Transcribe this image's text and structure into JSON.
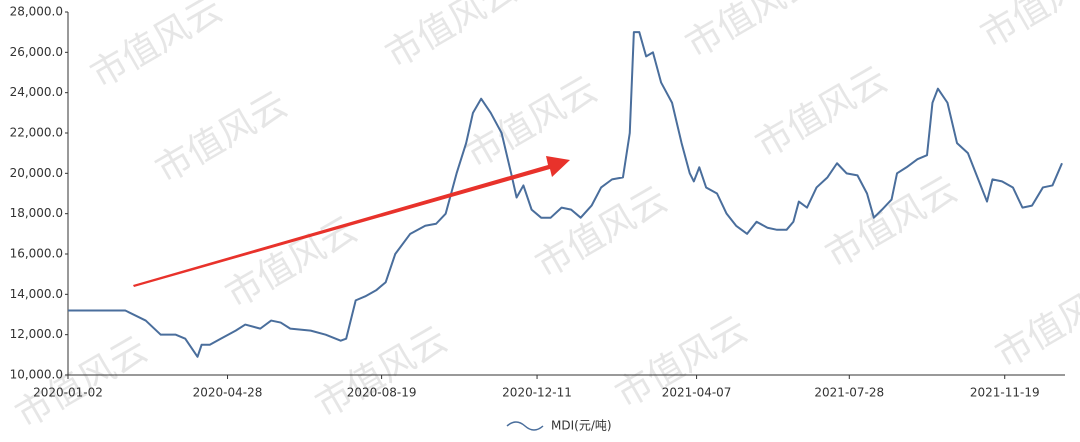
{
  "chart_data": {
    "type": "line",
    "watermark": "市值风云",
    "x": [
      "2020-01-02",
      "2020-02-13",
      "2020-02-28",
      "2020-03-10",
      "2020-03-21",
      "2020-03-28",
      "2020-04-06",
      "2020-04-09",
      "2020-04-15",
      "2020-04-23",
      "2020-05-04",
      "2020-05-11",
      "2020-05-22",
      "2020-05-30",
      "2020-06-06",
      "2020-06-13",
      "2020-06-28",
      "2020-07-09",
      "2020-07-20",
      "2020-07-24",
      "2020-07-31",
      "2020-08-07",
      "2020-08-15",
      "2020-08-22",
      "2020-08-29",
      "2020-09-09",
      "2020-09-20",
      "2020-09-28",
      "2020-10-05",
      "2020-10-13",
      "2020-10-20",
      "2020-10-25",
      "2020-10-31",
      "2020-11-07",
      "2020-11-15",
      "2020-11-22",
      "2020-11-26",
      "2020-12-01",
      "2020-12-07",
      "2020-12-14",
      "2020-12-21",
      "2020-12-29",
      "2021-01-05",
      "2021-01-12",
      "2021-01-20",
      "2021-01-27",
      "2021-02-04",
      "2021-02-12",
      "2021-02-17",
      "2021-02-20",
      "2021-02-24",
      "2021-03-01",
      "2021-03-06",
      "2021-03-12",
      "2021-03-20",
      "2021-03-27",
      "2021-04-02",
      "2021-04-05",
      "2021-04-09",
      "2021-04-14",
      "2021-04-22",
      "2021-04-29",
      "2021-05-06",
      "2021-05-14",
      "2021-05-21",
      "2021-05-29",
      "2021-06-05",
      "2021-06-12",
      "2021-06-17",
      "2021-06-21",
      "2021-06-27",
      "2021-07-04",
      "2021-07-12",
      "2021-07-19",
      "2021-07-26",
      "2021-08-03",
      "2021-08-10",
      "2021-08-15",
      "2021-08-21",
      "2021-08-28",
      "2021-09-01",
      "2021-09-08",
      "2021-09-16",
      "2021-09-23",
      "2021-09-27",
      "2021-10-01",
      "2021-10-08",
      "2021-10-15",
      "2021-10-23",
      "2021-10-30",
      "2021-11-06",
      "2021-11-10",
      "2021-11-17",
      "2021-11-25",
      "2021-12-02",
      "2021-12-09",
      "2021-12-17",
      "2021-12-24",
      "2021-12-31"
    ],
    "series": [
      {
        "name": "MDI(元/吨)",
        "color": "#4a6e9c",
        "values": [
          13200,
          13200,
          12700,
          12000,
          12000,
          11800,
          10900,
          11500,
          11500,
          11800,
          12200,
          12500,
          12300,
          12700,
          12600,
          12300,
          12200,
          12000,
          11700,
          11800,
          13700,
          13900,
          14200,
          14600,
          16000,
          17000,
          17400,
          17500,
          18000,
          20000,
          21500,
          23000,
          23700,
          23000,
          22000,
          20000,
          18800,
          19400,
          18200,
          17800,
          17800,
          18300,
          18200,
          17800,
          18400,
          19300,
          19700,
          19800,
          22000,
          27000,
          27000,
          25800,
          26000,
          24500,
          23500,
          21500,
          20000,
          19600,
          20300,
          19300,
          19000,
          18000,
          17400,
          17000,
          17600,
          17300,
          17200,
          17200,
          17600,
          18600,
          18300,
          19300,
          19800,
          20500,
          20000,
          19900,
          19000,
          17800,
          18200,
          18700,
          20000,
          20300,
          20700,
          20900,
          23500,
          24200,
          23500,
          21500,
          21000,
          19800,
          18600,
          19700,
          19600,
          19300,
          18300,
          18400,
          19300,
          19400,
          20500
        ]
      }
    ],
    "xlim": [
      "2020-01-02",
      "2021-12-31"
    ],
    "xticks": [
      "2020-01-02",
      "2020-04-28",
      "2020-08-19",
      "2020-12-11",
      "2021-04-07",
      "2021-07-28",
      "2021-11-19"
    ],
    "ylim": [
      10000,
      28000
    ],
    "yticks": [
      {
        "value": 10000,
        "label": "10,000.0"
      },
      {
        "value": 12000,
        "label": "12,000.0"
      },
      {
        "value": 14000,
        "label": "14,000.0"
      },
      {
        "value": 16000,
        "label": "16,000.0"
      },
      {
        "value": 18000,
        "label": "18,000.0"
      },
      {
        "value": 20000,
        "label": "20,000.0"
      },
      {
        "value": 22000,
        "label": "22,000.0"
      },
      {
        "value": 24000,
        "label": "24,000.0"
      },
      {
        "value": 26000,
        "label": "26,000.0"
      },
      {
        "value": 28000,
        "label": "28,000.0"
      }
    ]
  }
}
